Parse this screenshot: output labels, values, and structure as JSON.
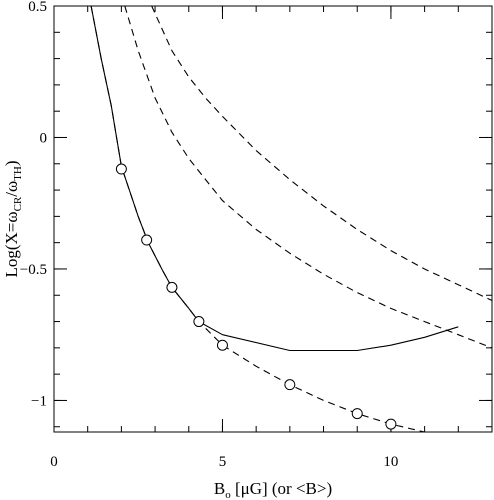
{
  "chart_data": {
    "type": "line",
    "title": "",
    "xlabel": {
      "main": "B",
      "sub": "o",
      "rest": " [μG] (or <B>)"
    },
    "ylabel": {
      "pre": "Log(X=ω",
      "sub1": "CR",
      "mid": "/ω",
      "sub2": "TH",
      "post": ")"
    },
    "xlim": [
      0,
      13
    ],
    "ylim": [
      -1.12,
      0.5
    ],
    "x_ticks": [
      0,
      5,
      10
    ],
    "x_tick_labels": [
      "0",
      "5",
      "10"
    ],
    "y_ticks": [
      0.5,
      0,
      -0.5,
      -1
    ],
    "y_tick_labels": [
      "0.5",
      "0",
      "−0.5",
      "−1"
    ],
    "x_minor_step": 1,
    "y_minor_step": 0.1,
    "grid": false,
    "series": [
      {
        "style": "solid",
        "points": [
          [
            1.1,
            0.5
          ],
          [
            1.4,
            0.3
          ],
          [
            1.7,
            0.12
          ],
          [
            2.0,
            -0.11
          ],
          [
            2.5,
            -0.3
          ],
          [
            2.8,
            -0.4
          ],
          [
            3.2,
            -0.5
          ],
          [
            3.5,
            -0.57
          ],
          [
            4.0,
            -0.65
          ],
          [
            4.3,
            -0.7
          ],
          [
            5.0,
            -0.75
          ],
          [
            7.0,
            -0.81
          ],
          [
            9.0,
            -0.81
          ],
          [
            10.0,
            -0.79
          ],
          [
            11.0,
            -0.76
          ],
          [
            12.0,
            -0.72
          ]
        ]
      },
      {
        "style": "dashed",
        "points": [
          [
            1.1,
            0.5
          ],
          [
            1.4,
            0.3
          ],
          [
            1.7,
            0.12
          ],
          [
            2.0,
            -0.11
          ],
          [
            2.5,
            -0.3
          ],
          [
            2.8,
            -0.4
          ],
          [
            3.2,
            -0.5
          ],
          [
            3.5,
            -0.57
          ],
          [
            4.0,
            -0.65
          ],
          [
            4.3,
            -0.7
          ],
          [
            5.0,
            -0.79
          ],
          [
            6.0,
            -0.87
          ],
          [
            7.0,
            -0.94
          ],
          [
            8.0,
            -1.0
          ],
          [
            9.0,
            -1.05
          ],
          [
            10.0,
            -1.09
          ],
          [
            11.0,
            -1.12
          ]
        ]
      },
      {
        "style": "dashed",
        "points": [
          [
            2.1,
            0.5
          ],
          [
            2.5,
            0.33
          ],
          [
            3.0,
            0.15
          ],
          [
            3.5,
            0.02
          ],
          [
            4.0,
            -0.08
          ],
          [
            4.5,
            -0.16
          ],
          [
            5.0,
            -0.24
          ],
          [
            6.0,
            -0.35
          ],
          [
            7.0,
            -0.44
          ],
          [
            8.0,
            -0.52
          ],
          [
            9.0,
            -0.59
          ],
          [
            10.0,
            -0.65
          ],
          [
            11.0,
            -0.7
          ],
          [
            12.0,
            -0.75
          ],
          [
            13.0,
            -0.8
          ]
        ]
      },
      {
        "style": "dashed",
        "points": [
          [
            2.9,
            0.5
          ],
          [
            3.5,
            0.33
          ],
          [
            4.0,
            0.23
          ],
          [
            4.5,
            0.15
          ],
          [
            5.0,
            0.08
          ],
          [
            6.0,
            -0.05
          ],
          [
            7.0,
            -0.16
          ],
          [
            8.0,
            -0.26
          ],
          [
            9.0,
            -0.35
          ],
          [
            10.0,
            -0.43
          ],
          [
            11.0,
            -0.5
          ],
          [
            12.0,
            -0.56
          ],
          [
            13.0,
            -0.62
          ]
        ]
      }
    ],
    "markers": [
      {
        "x": 2.0,
        "y": -0.12
      },
      {
        "x": 2.75,
        "y": -0.39
      },
      {
        "x": 3.5,
        "y": -0.57
      },
      {
        "x": 4.3,
        "y": -0.7
      },
      {
        "x": 5.0,
        "y": -0.79
      },
      {
        "x": 7.0,
        "y": -0.94
      },
      {
        "x": 9.0,
        "y": -1.05
      },
      {
        "x": 10.0,
        "y": -1.09
      }
    ]
  }
}
